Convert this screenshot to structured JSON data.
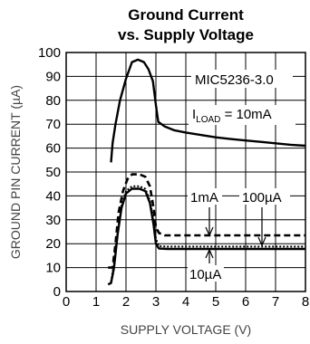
{
  "chart_data": {
    "type": "line",
    "title_line1": "Ground Current",
    "title_line2": "vs. Supply Voltage",
    "xlabel": "SUPPLY VOLTAGE (V)",
    "ylabel": "GROUND PIN CURRENT (µA)",
    "xlim": [
      0,
      8
    ],
    "ylim": [
      0,
      100
    ],
    "xticks": [
      "0",
      "1",
      "2",
      "3",
      "4",
      "5",
      "6",
      "7",
      "8"
    ],
    "yticks": [
      "0",
      "10",
      "20",
      "30",
      "40",
      "50",
      "60",
      "70",
      "80",
      "90",
      "100"
    ],
    "grid": true,
    "annotations": {
      "part": "MIC5236-3.0",
      "iload_prefix": "I",
      "iload_sub": "LOAD",
      "iload_value": " = 10mA",
      "s1": "1mA",
      "s2": "100µA",
      "s3": "10µA"
    },
    "series": [
      {
        "name": "10mA",
        "style": "solid",
        "points": [
          [
            1.5,
            54
          ],
          [
            1.55,
            62
          ],
          [
            1.65,
            70
          ],
          [
            1.8,
            80
          ],
          [
            2.0,
            89
          ],
          [
            2.2,
            96
          ],
          [
            2.4,
            97
          ],
          [
            2.6,
            96
          ],
          [
            2.75,
            93
          ],
          [
            2.9,
            88
          ],
          [
            3.0,
            78
          ],
          [
            3.08,
            71
          ],
          [
            3.3,
            69
          ],
          [
            3.6,
            67.5
          ],
          [
            4,
            66.5
          ],
          [
            4.5,
            65.5
          ],
          [
            5,
            64.5
          ],
          [
            5.5,
            63.8
          ],
          [
            6,
            63.2
          ],
          [
            6.5,
            62.6
          ],
          [
            7,
            62
          ],
          [
            7.5,
            61.4
          ],
          [
            8,
            61
          ]
        ]
      },
      {
        "name": "1mA",
        "style": "dashed",
        "points": [
          [
            1.4,
            10
          ],
          [
            1.55,
            10
          ],
          [
            1.65,
            20
          ],
          [
            1.75,
            33
          ],
          [
            1.9,
            42
          ],
          [
            2.05,
            47
          ],
          [
            2.2,
            49
          ],
          [
            2.45,
            49
          ],
          [
            2.65,
            48
          ],
          [
            2.8,
            44
          ],
          [
            2.92,
            35
          ],
          [
            3.0,
            27
          ],
          [
            3.1,
            24.5
          ],
          [
            3.3,
            23.5
          ],
          [
            4,
            23.5
          ],
          [
            5,
            23.5
          ],
          [
            6,
            23.5
          ],
          [
            7,
            23.5
          ],
          [
            8,
            23.5
          ]
        ]
      },
      {
        "name": "100µA",
        "style": "dotted",
        "points": [
          [
            1.5,
            4
          ],
          [
            1.6,
            12
          ],
          [
            1.72,
            25
          ],
          [
            1.85,
            36
          ],
          [
            2.0,
            42
          ],
          [
            2.2,
            44
          ],
          [
            2.45,
            44
          ],
          [
            2.65,
            43
          ],
          [
            2.8,
            38
          ],
          [
            2.92,
            30
          ],
          [
            3.0,
            22
          ],
          [
            3.1,
            19
          ],
          [
            3.4,
            18.8
          ],
          [
            4,
            18.8
          ],
          [
            5,
            18.8
          ],
          [
            6,
            18.8
          ],
          [
            7,
            18.8
          ],
          [
            8,
            18.8
          ]
        ]
      },
      {
        "name": "10µA",
        "style": "solid",
        "points": [
          [
            1.4,
            3
          ],
          [
            1.5,
            3.5
          ],
          [
            1.6,
            10
          ],
          [
            1.72,
            24
          ],
          [
            1.85,
            35
          ],
          [
            2.0,
            41
          ],
          [
            2.2,
            43
          ],
          [
            2.45,
            43
          ],
          [
            2.65,
            42
          ],
          [
            2.8,
            37
          ],
          [
            2.92,
            28
          ],
          [
            3.0,
            20
          ],
          [
            3.1,
            18
          ],
          [
            3.4,
            17.8
          ],
          [
            4,
            17.8
          ],
          [
            5,
            17.8
          ],
          [
            6,
            17.8
          ],
          [
            7,
            17.8
          ],
          [
            8,
            17.8
          ]
        ]
      }
    ]
  }
}
